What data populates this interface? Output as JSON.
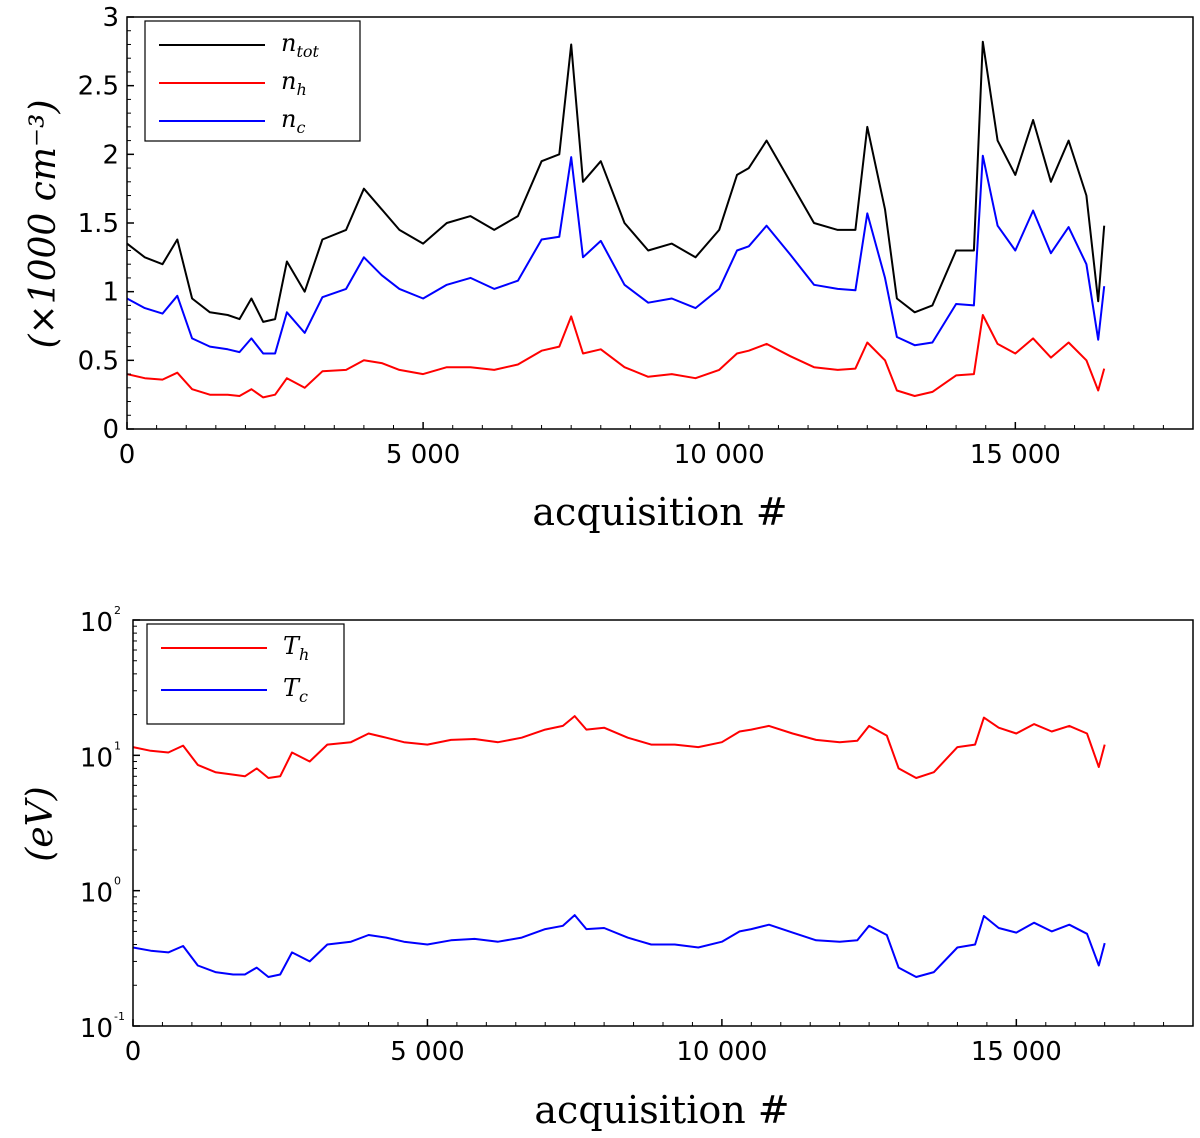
{
  "chart_data": [
    {
      "type": "line",
      "title": "",
      "xlabel": "acquisition #",
      "ylabel": "(×1000 cm⁻³)",
      "xlim": [
        0,
        18000
      ],
      "ylim": [
        0,
        3
      ],
      "yscale": "linear",
      "x_ticks": [
        0,
        5000,
        10000,
        15000
      ],
      "x_tick_labels": [
        "0",
        "5 000",
        "10 000",
        "15 000"
      ],
      "y_ticks": [
        0,
        0.5,
        1,
        1.5,
        2,
        2.5,
        3
      ],
      "y_tick_labels": [
        "0",
        "0.5",
        "1",
        "1.5",
        "2",
        "2.5",
        "3"
      ],
      "grid": false,
      "legend_position": "top-left",
      "x": [
        0,
        300,
        600,
        850,
        1100,
        1400,
        1700,
        1900,
        2100,
        2300,
        2500,
        2700,
        3000,
        3300,
        3700,
        4000,
        4300,
        4600,
        5000,
        5400,
        5800,
        6200,
        6600,
        7000,
        7300,
        7500,
        7700,
        8000,
        8400,
        8800,
        9200,
        9600,
        10000,
        10300,
        10500,
        10800,
        11200,
        11600,
        12000,
        12300,
        12500,
        12800,
        13000,
        13300,
        13600,
        14000,
        14300,
        14450,
        14700,
        15000,
        15300,
        15600,
        15900,
        16200,
        16400,
        16500
      ],
      "series": [
        {
          "name": "n_tot",
          "label_base": "n",
          "label_sub": "tot",
          "color": "#000000",
          "values": [
            1.35,
            1.25,
            1.2,
            1.38,
            0.95,
            0.85,
            0.83,
            0.8,
            0.95,
            0.78,
            0.8,
            1.22,
            1.0,
            1.38,
            1.45,
            1.75,
            1.6,
            1.45,
            1.35,
            1.5,
            1.55,
            1.45,
            1.55,
            1.95,
            2.0,
            2.8,
            1.8,
            1.95,
            1.5,
            1.3,
            1.35,
            1.25,
            1.45,
            1.85,
            1.9,
            2.1,
            1.8,
            1.5,
            1.45,
            1.45,
            2.2,
            1.6,
            0.95,
            0.85,
            0.9,
            1.3,
            1.3,
            2.82,
            2.1,
            1.85,
            2.25,
            1.8,
            2.1,
            1.7,
            0.93,
            1.48
          ]
        },
        {
          "name": "n_h",
          "label_base": "n",
          "label_sub": "h",
          "color": "#ff0000",
          "values": [
            0.4,
            0.37,
            0.36,
            0.41,
            0.29,
            0.25,
            0.25,
            0.24,
            0.29,
            0.23,
            0.25,
            0.37,
            0.3,
            0.42,
            0.43,
            0.5,
            0.48,
            0.43,
            0.4,
            0.45,
            0.45,
            0.43,
            0.47,
            0.57,
            0.6,
            0.82,
            0.55,
            0.58,
            0.45,
            0.38,
            0.4,
            0.37,
            0.43,
            0.55,
            0.57,
            0.62,
            0.53,
            0.45,
            0.43,
            0.44,
            0.63,
            0.5,
            0.28,
            0.24,
            0.27,
            0.39,
            0.4,
            0.83,
            0.62,
            0.55,
            0.66,
            0.52,
            0.63,
            0.5,
            0.28,
            0.44
          ]
        },
        {
          "name": "n_c",
          "label_base": "n",
          "label_sub": "c",
          "color": "#0000ff",
          "values": [
            0.95,
            0.88,
            0.84,
            0.97,
            0.66,
            0.6,
            0.58,
            0.56,
            0.66,
            0.55,
            0.55,
            0.85,
            0.7,
            0.96,
            1.02,
            1.25,
            1.12,
            1.02,
            0.95,
            1.05,
            1.1,
            1.02,
            1.08,
            1.38,
            1.4,
            1.98,
            1.25,
            1.37,
            1.05,
            0.92,
            0.95,
            0.88,
            1.02,
            1.3,
            1.33,
            1.48,
            1.27,
            1.05,
            1.02,
            1.01,
            1.57,
            1.1,
            0.67,
            0.61,
            0.63,
            0.91,
            0.9,
            1.99,
            1.48,
            1.3,
            1.59,
            1.28,
            1.47,
            1.2,
            0.65,
            1.04
          ]
        }
      ]
    },
    {
      "type": "line",
      "title": "",
      "xlabel": "acquisition #",
      "ylabel": "(eV)",
      "xlim": [
        0,
        18000
      ],
      "ylim": [
        0.1,
        100
      ],
      "yscale": "log",
      "x_ticks": [
        0,
        5000,
        10000,
        15000
      ],
      "x_tick_labels": [
        "0",
        "5 000",
        "10 000",
        "15 000"
      ],
      "y_ticks": [
        0.1,
        1,
        10,
        100
      ],
      "y_tick_labels": [
        {
          "base": "10",
          "exp": "-1"
        },
        {
          "base": "10",
          "exp": "0"
        },
        {
          "base": "10",
          "exp": "1"
        },
        {
          "base": "10",
          "exp": "2"
        }
      ],
      "grid": false,
      "legend_position": "top-left",
      "x": [
        0,
        300,
        600,
        850,
        1100,
        1400,
        1700,
        1900,
        2100,
        2300,
        2500,
        2700,
        3000,
        3300,
        3700,
        4000,
        4300,
        4600,
        5000,
        5400,
        5800,
        6200,
        6600,
        7000,
        7300,
        7500,
        7700,
        8000,
        8400,
        8800,
        9200,
        9600,
        10000,
        10300,
        10500,
        10800,
        11200,
        11600,
        12000,
        12300,
        12500,
        12800,
        13000,
        13300,
        13600,
        14000,
        14300,
        14450,
        14700,
        15000,
        15300,
        15600,
        15900,
        16200,
        16400,
        16500
      ],
      "series": [
        {
          "name": "T_h",
          "label_base": "T",
          "label_sub": "h",
          "color": "#ff0000",
          "values": [
            11.5,
            10.8,
            10.5,
            11.8,
            8.5,
            7.5,
            7.2,
            7.0,
            8.0,
            6.8,
            7.0,
            10.5,
            9.0,
            12.0,
            12.5,
            14.5,
            13.5,
            12.5,
            12.0,
            13.0,
            13.2,
            12.5,
            13.5,
            15.5,
            16.5,
            19.5,
            15.5,
            16.0,
            13.5,
            12.0,
            12.0,
            11.5,
            12.5,
            15.0,
            15.5,
            16.5,
            14.5,
            13.0,
            12.5,
            12.8,
            16.5,
            14.0,
            8.0,
            6.8,
            7.5,
            11.5,
            12.0,
            19.0,
            16.0,
            14.5,
            17.0,
            15.0,
            16.5,
            14.5,
            8.2,
            12.0
          ]
        },
        {
          "name": "T_c",
          "label_base": "T",
          "label_sub": "c",
          "color": "#0000ff",
          "values": [
            0.38,
            0.36,
            0.35,
            0.39,
            0.28,
            0.25,
            0.24,
            0.24,
            0.27,
            0.23,
            0.24,
            0.35,
            0.3,
            0.4,
            0.42,
            0.47,
            0.45,
            0.42,
            0.4,
            0.43,
            0.44,
            0.42,
            0.45,
            0.52,
            0.55,
            0.66,
            0.52,
            0.53,
            0.45,
            0.4,
            0.4,
            0.38,
            0.42,
            0.5,
            0.52,
            0.56,
            0.49,
            0.43,
            0.42,
            0.43,
            0.55,
            0.47,
            0.27,
            0.23,
            0.25,
            0.38,
            0.4,
            0.65,
            0.53,
            0.49,
            0.58,
            0.5,
            0.56,
            0.48,
            0.28,
            0.41
          ]
        }
      ]
    }
  ]
}
